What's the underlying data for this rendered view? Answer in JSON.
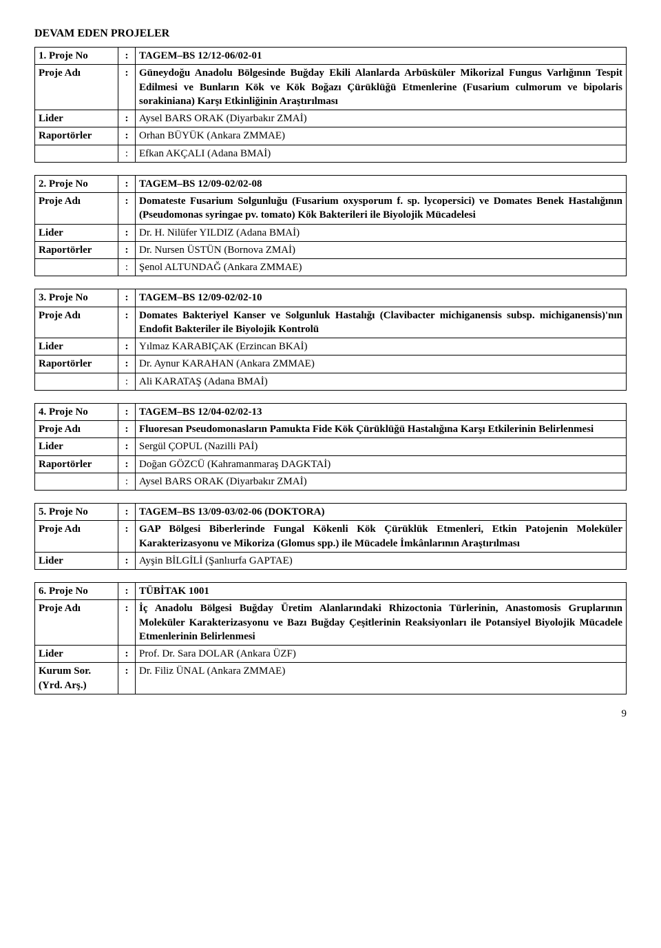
{
  "sectionTitle": "DEVAM EDEN PROJELER",
  "pageNumber": "9",
  "tables": [
    {
      "rows": [
        {
          "num": "1.",
          "label": "Proje No",
          "value": "TAGEM–BS 12/12-06/02-01",
          "boldLabel": true,
          "boldValue": true
        },
        {
          "label": "Proje Adı",
          "value": "Güneydoğu Anadolu Bölgesinde Buğday Ekili Alanlarda Arbüsküler Mikorizal Fungus Varlığının Tespit Edilmesi ve Bunların Kök ve Kök Boğazı Çürüklüğü Etmenlerine (Fusarium culmorum ve bipolaris sorakiniana) Karşı Etkinliğinin Araştırılması",
          "boldLabel": true,
          "boldValue": true,
          "justify": true
        },
        {
          "label": "Lider",
          "value": "Aysel BARS ORAK (Diyarbakır ZMAİ)",
          "boldLabel": true
        },
        {
          "label": "Raportörler",
          "value": "Orhan BÜYÜK (Ankara ZMMAE)",
          "boldLabel": true
        },
        {
          "label": "",
          "value": "Efkan AKÇALI (Adana BMAİ)"
        }
      ]
    },
    {
      "rows": [
        {
          "num": "2.",
          "label": "Proje No",
          "value": "TAGEM–BS 12/09-02/02-08",
          "boldLabel": true,
          "boldValue": true
        },
        {
          "label": "Proje Adı",
          "value": "Domateste Fusarium Solgunluğu (Fusarium oxysporum f. sp. lycopersici) ve Domates Benek Hastalığının (Pseudomonas syringae pv. tomato) Kök Bakterileri ile Biyolojik Mücadelesi",
          "boldLabel": true,
          "boldValue": true,
          "justify": true
        },
        {
          "label": "Lider",
          "value": "Dr. H. Nilüfer YILDIZ (Adana BMAİ)",
          "boldLabel": true
        },
        {
          "label": "Raportörler",
          "value": "Dr. Nursen ÜSTÜN  (Bornova ZMAİ)",
          "boldLabel": true
        },
        {
          "label": "",
          "value": "Şenol ALTUNDAĞ  (Ankara ZMMAE)"
        }
      ]
    },
    {
      "rows": [
        {
          "num": "3.",
          "label": "Proje No",
          "value": "TAGEM–BS 12/09-02/02-10",
          "boldLabel": true,
          "boldValue": true
        },
        {
          "label": "Proje Adı",
          "value": "Domates Bakteriyel Kanser ve Solgunluk Hastalığı (Clavibacter michiganensis subsp. michiganensis)'nın Endofit Bakteriler ile Biyolojik Kontrolü",
          "boldLabel": true,
          "boldValue": true,
          "justify": true
        },
        {
          "label": "Lider",
          "value": "Yılmaz KARABIÇAK  (Erzincan BKAİ)",
          "boldLabel": true
        },
        {
          "label": "Raportörler",
          "value": "Dr. Aynur KARAHAN  (Ankara ZMMAE)",
          "boldLabel": true
        },
        {
          "label": "",
          "value": "Ali KARATAŞ   (Adana BMAİ)"
        }
      ]
    },
    {
      "rows": [
        {
          "num": "4.",
          "label": "Proje No",
          "value": "TAGEM–BS 12/04-02/02-13",
          "boldLabel": true,
          "boldValue": true
        },
        {
          "label": "Proje Adı",
          "value": "Fluoresan Pseudomonasların Pamukta Fide Kök Çürüklüğü Hastalığına Karşı Etkilerinin Belirlenmesi",
          "boldLabel": true,
          "boldValue": true,
          "justify": true
        },
        {
          "label": "Lider",
          "value": "Sergül ÇOPUL  (Nazilli PAİ)",
          "boldLabel": true
        },
        {
          "label": "Raportörler",
          "value": "Doğan GÖZCÜ  (Kahramanmaraş DAGKTAİ)",
          "boldLabel": true
        },
        {
          "label": "",
          "value": "Aysel BARS ORAK  (Diyarbakır ZMAİ)"
        }
      ]
    },
    {
      "rows": [
        {
          "num": "5.",
          "label": "Proje No",
          "value": "TAGEM–BS 13/09-03/02-06 (DOKTORA)",
          "boldLabel": true,
          "boldValue": true
        },
        {
          "label": "Proje Adı",
          "value": "GAP Bölgesi Biberlerinde Fungal Kökenli Kök Çürüklük Etmenleri, Etkin Patojenin Moleküler Karakterizasyonu ve Mikoriza (Glomus spp.) ile Mücadele İmkânlarının Araştırılması",
          "boldLabel": true,
          "boldValue": true,
          "justify": true
        },
        {
          "label": "Lider",
          "value": "Ayşin BİLGİLİ (Şanlıurfa GAPTAE)",
          "boldLabel": true
        }
      ]
    },
    {
      "rows": [
        {
          "num": "6.",
          "label": "Proje No",
          "value": "TÜBİTAK 1001",
          "boldLabel": true,
          "boldValue": true
        },
        {
          "label": "Proje Adı",
          "value": "İç Anadolu Bölgesi Buğday Üretim Alanlarındaki Rhizoctonia Türlerinin, Anastomosis Gruplarının Moleküler Karakterizasyonu ve Bazı Buğday Çeşitlerinin Reaksiyonları ile Potansiyel Biyolojik Mücadele Etmenlerinin Belirlenmesi",
          "boldLabel": true,
          "boldValue": true,
          "justify": true
        },
        {
          "label": "Lider",
          "value": "Prof. Dr. Sara DOLAR (Ankara ÜZF)",
          "boldLabel": true
        },
        {
          "label": "Kurum Sor. (Yrd. Arş.)",
          "value": "Dr. Filiz ÜNAL (Ankara ZMMAE)",
          "boldLabel": true
        }
      ]
    }
  ]
}
